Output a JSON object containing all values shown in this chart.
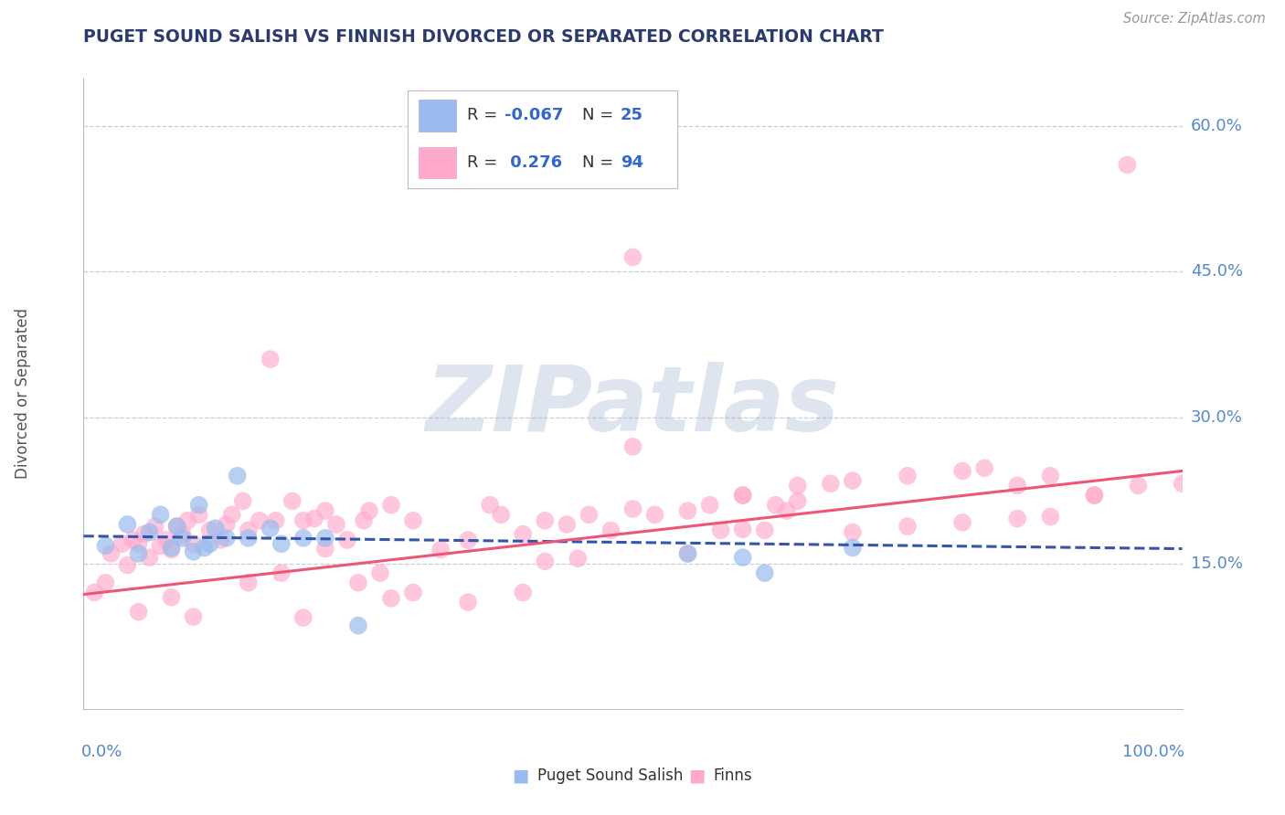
{
  "title": "PUGET SOUND SALISH VS FINNISH DIVORCED OR SEPARATED CORRELATION CHART",
  "source": "Source: ZipAtlas.com",
  "ylabel": "Divorced or Separated",
  "xlim": [
    0.0,
    1.0
  ],
  "ylim": [
    0.0,
    0.65
  ],
  "ytick_vals": [
    0.15,
    0.3,
    0.45,
    0.6
  ],
  "ytick_labels": [
    "15.0%",
    "30.0%",
    "45.0%",
    "60.0%"
  ],
  "xtick_left": "0.0%",
  "xtick_right": "100.0%",
  "legend_R1": "-0.067",
  "legend_N1": "25",
  "legend_R2": "0.276",
  "legend_N2": "94",
  "blue_scatter_color": "#99BBEE",
  "pink_scatter_color": "#FFAACC",
  "blue_line_color": "#3355AA",
  "pink_line_color": "#EE5577",
  "blue_trend_y0": 0.178,
  "blue_trend_y1": 0.165,
  "pink_trend_y0": 0.118,
  "pink_trend_y1": 0.245,
  "watermark_text": "ZIPatlas",
  "watermark_color": "#AABBD4",
  "title_color": "#2B3B6B",
  "source_color": "#999999",
  "grid_color": "#CCCCDD",
  "ytick_color": "#5588CC",
  "xtick_color": "#5588CC",
  "ylabel_color": "#555555",
  "bottom_label_color": "#333333",
  "legend_R_color": "#333333",
  "legend_N_color": "#3366CC",
  "blue_scatter_x": [
    0.02,
    0.04,
    0.05,
    0.06,
    0.07,
    0.08,
    0.085,
    0.09,
    0.1,
    0.105,
    0.11,
    0.115,
    0.12,
    0.13,
    0.14,
    0.15,
    0.17,
    0.18,
    0.2,
    0.22,
    0.25,
    0.55,
    0.6,
    0.62,
    0.7
  ],
  "blue_scatter_y": [
    0.168,
    0.19,
    0.16,
    0.182,
    0.2,
    0.166,
    0.188,
    0.176,
    0.162,
    0.21,
    0.166,
    0.17,
    0.186,
    0.176,
    0.24,
    0.176,
    0.186,
    0.17,
    0.176,
    0.176,
    0.086,
    0.16,
    0.156,
    0.14,
    0.166
  ],
  "pink_scatter_x": [
    0.01,
    0.02,
    0.025,
    0.035,
    0.04,
    0.045,
    0.05,
    0.055,
    0.06,
    0.065,
    0.07,
    0.075,
    0.08,
    0.085,
    0.09,
    0.095,
    0.1,
    0.105,
    0.115,
    0.125,
    0.13,
    0.135,
    0.145,
    0.15,
    0.16,
    0.17,
    0.175,
    0.19,
    0.2,
    0.21,
    0.22,
    0.23,
    0.24,
    0.255,
    0.26,
    0.28,
    0.3,
    0.325,
    0.35,
    0.37,
    0.38,
    0.4,
    0.42,
    0.44,
    0.46,
    0.48,
    0.5,
    0.52,
    0.55,
    0.57,
    0.58,
    0.6,
    0.62,
    0.63,
    0.64,
    0.65,
    0.35,
    0.4,
    0.45,
    0.5,
    0.6,
    0.65,
    0.7,
    0.75,
    0.8,
    0.82,
    0.85,
    0.88,
    0.92,
    0.95,
    0.2,
    0.22,
    0.25,
    0.28,
    0.15,
    0.1,
    0.08,
    0.05,
    0.18,
    0.27,
    0.3,
    0.55,
    0.7,
    0.75,
    0.8,
    0.85,
    0.88,
    0.92,
    0.96,
    1.0,
    0.42,
    0.5,
    0.6,
    0.68
  ],
  "pink_scatter_y": [
    0.12,
    0.13,
    0.16,
    0.17,
    0.148,
    0.174,
    0.17,
    0.18,
    0.156,
    0.188,
    0.168,
    0.174,
    0.164,
    0.188,
    0.18,
    0.194,
    0.17,
    0.2,
    0.184,
    0.174,
    0.19,
    0.2,
    0.214,
    0.184,
    0.194,
    0.36,
    0.194,
    0.214,
    0.194,
    0.196,
    0.204,
    0.19,
    0.174,
    0.194,
    0.204,
    0.21,
    0.194,
    0.164,
    0.174,
    0.21,
    0.2,
    0.18,
    0.194,
    0.19,
    0.2,
    0.184,
    0.465,
    0.2,
    0.204,
    0.21,
    0.184,
    0.22,
    0.184,
    0.21,
    0.204,
    0.214,
    0.11,
    0.12,
    0.155,
    0.27,
    0.22,
    0.23,
    0.235,
    0.24,
    0.245,
    0.248,
    0.23,
    0.24,
    0.22,
    0.56,
    0.094,
    0.165,
    0.13,
    0.114,
    0.13,
    0.095,
    0.115,
    0.1,
    0.14,
    0.14,
    0.12,
    0.16,
    0.182,
    0.188,
    0.192,
    0.196,
    0.198,
    0.22,
    0.23,
    0.232,
    0.152,
    0.206,
    0.185,
    0.232
  ]
}
